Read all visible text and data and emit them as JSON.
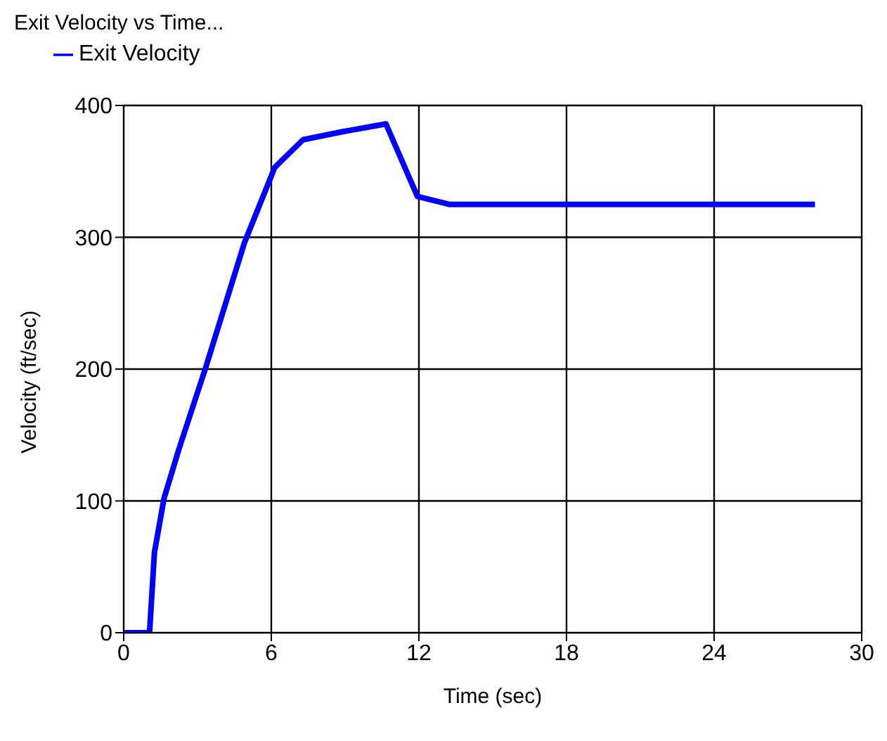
{
  "chart_data": {
    "type": "line",
    "title": "Exit Velocity vs Time...",
    "xlabel": "Time (sec)",
    "ylabel": "Velocity (ft/sec)",
    "x": [
      0,
      1.05,
      1.25,
      1.64,
      2.24,
      3.33,
      4.91,
      6.14,
      7.29,
      8.87,
      10.66,
      11.94,
      13.23,
      28.1
    ],
    "series": [
      {
        "name": "Exit Velocity",
        "color": "#0000ff",
        "values": [
          0,
          0,
          61,
          102,
          139,
          201,
          296,
          353,
          374,
          380,
          386,
          331,
          325,
          325
        ]
      }
    ],
    "xlim": [
      0,
      30
    ],
    "xticks": [
      0,
      6,
      12,
      18,
      24,
      30
    ],
    "ylim": [
      0,
      400
    ],
    "yticks": [
      0,
      100,
      200,
      300,
      400
    ],
    "grid": true,
    "legend": "top left",
    "marker": "none",
    "line_style": "solid"
  }
}
